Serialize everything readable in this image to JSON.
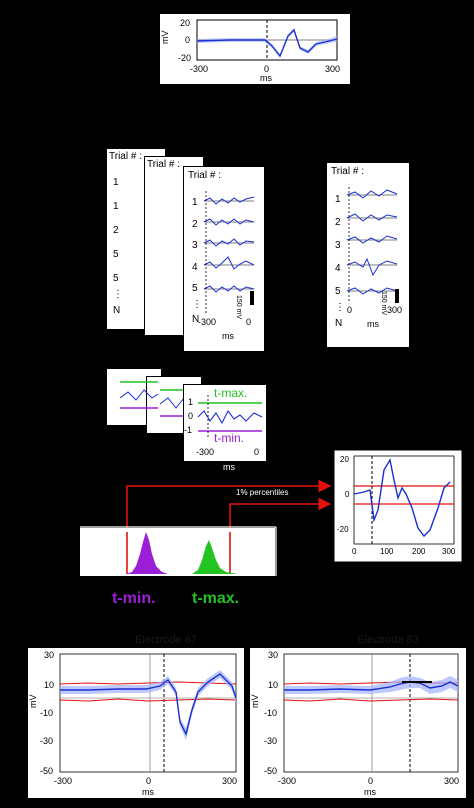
{
  "top_erp": {
    "ylabel": "mV",
    "yticks": [
      "20",
      "0",
      "-20"
    ],
    "xticks": [
      "-300",
      "0",
      "300"
    ],
    "xlabel": "ms"
  },
  "trials": {
    "header": "Trial # :",
    "numbers_left": [
      "1",
      "1",
      "2",
      "5",
      "5",
      "N"
    ],
    "numbers_front": [
      "1",
      "2",
      "3",
      "4",
      "5",
      "N"
    ],
    "numbers_right": [
      "1",
      "2",
      "3",
      "4",
      "5",
      "N"
    ],
    "scale_label": "150 mV",
    "xticks_front": [
      "-300",
      "0"
    ],
    "xticks_right": [
      "0",
      "300"
    ],
    "xlabel": "ms"
  },
  "tstat": {
    "tmax_label": "t-max.",
    "tmin_label": "t-min.",
    "yticks": [
      "1",
      "0",
      "-1"
    ],
    "xticks": [
      "-300",
      "0"
    ],
    "xlabel": "ms",
    "colors": {
      "tmax": "#22c322",
      "tmin": "#9a1fd6"
    }
  },
  "percentile_label": "1% percentiles",
  "inset": {
    "yticks": [
      "20",
      "0",
      "-20"
    ],
    "xticks": [
      "0",
      "100",
      "200",
      "300"
    ]
  },
  "histogram": {
    "tmin_label": "t-min.",
    "tmax_label": "t-max."
  },
  "electrodes": [
    {
      "title": "Electrode 67",
      "ylabel": "mV",
      "yticks": [
        "30",
        "10",
        "-10",
        "-30",
        "-50"
      ],
      "xticks": [
        "-300",
        "0",
        "300"
      ],
      "xlabel": "ms"
    },
    {
      "title": "Electrode 83",
      "ylabel": "mV",
      "yticks": [
        "30",
        "10",
        "-10",
        "-30",
        "-50"
      ],
      "xticks": [
        "-300",
        "0",
        "300"
      ],
      "xlabel": "ms"
    }
  ]
}
